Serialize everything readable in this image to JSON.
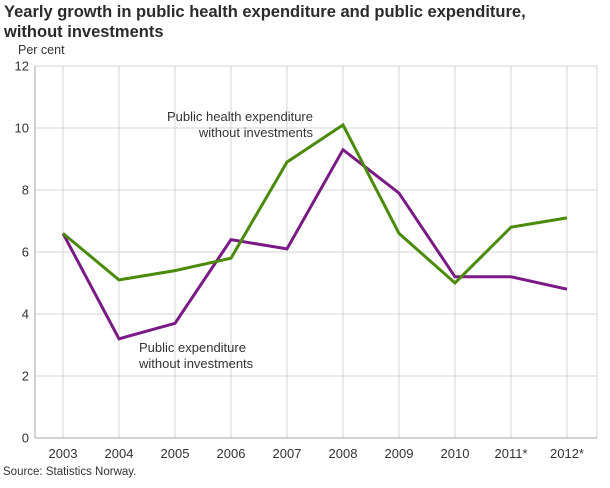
{
  "header": {
    "title_lines": [
      "Yearly growth in public health expenditure and public expenditure,",
      "without investments"
    ]
  },
  "chart_data": {
    "type": "line",
    "title": "Yearly growth in public health expenditure and public expenditure, without investments",
    "unit_label": "Per cent",
    "xlabel": "",
    "ylabel": "Per cent",
    "x_labels": [
      "2003",
      "2004",
      "2005",
      "2006",
      "2007",
      "2008",
      "2009",
      "2010",
      "2011*",
      "2012*"
    ],
    "y_ticks": [
      0,
      2,
      4,
      6,
      8,
      10,
      12
    ],
    "ylim": [
      0,
      12
    ],
    "grid": true,
    "legend_position": "inline-annotations",
    "series": [
      {
        "name": "Public health expenditure without investments",
        "annotation_lines": [
          "Public health expenditure",
          "without investments"
        ],
        "color": "#4c8a0a",
        "values": [
          6.6,
          5.1,
          5.4,
          5.8,
          8.9,
          10.1,
          6.6,
          5.0,
          6.8,
          7.1
        ]
      },
      {
        "name": "Public expenditure without investments",
        "annotation_lines": [
          "Public expenditure",
          "without investments"
        ],
        "color": "#7a1a85",
        "values": [
          6.6,
          3.2,
          3.7,
          6.4,
          6.1,
          9.3,
          7.9,
          5.2,
          5.2,
          4.8
        ]
      }
    ]
  },
  "footer": {
    "source": "Source: Statistics Norway."
  },
  "colors": {
    "grid": "#d4d4d4",
    "axis": "#a6a6a6",
    "text": "#333333",
    "title": "#2b2b2b"
  }
}
